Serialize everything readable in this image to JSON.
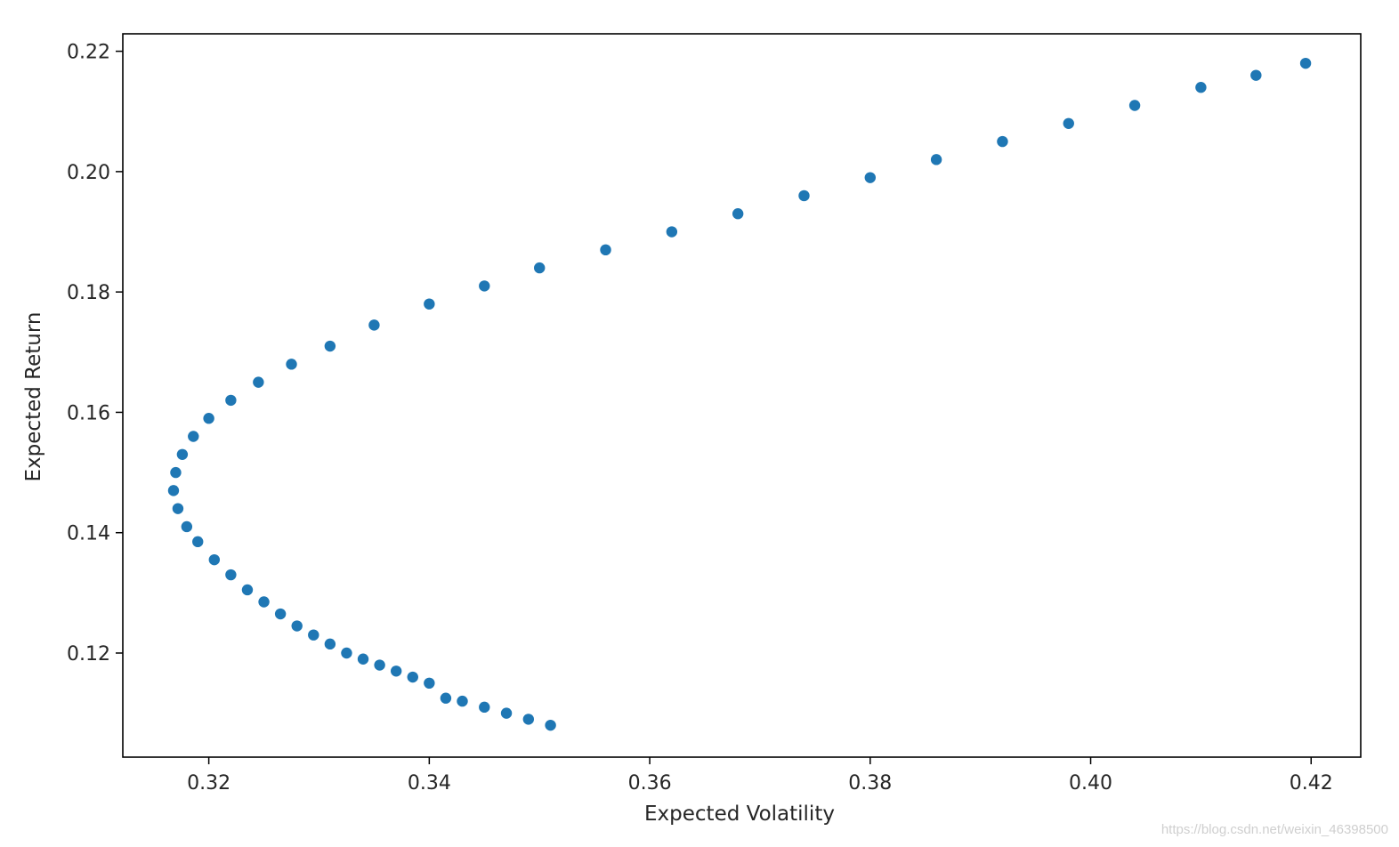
{
  "chart_data": {
    "type": "scatter",
    "title": "",
    "xlabel": "Expected Volatility",
    "ylabel": "Expected Return",
    "xlim": [
      0.3122,
      0.4245
    ],
    "ylim": [
      0.1027,
      0.2229
    ],
    "xticks": [
      "0.32",
      "0.34",
      "0.36",
      "0.38",
      "0.40",
      "0.42"
    ],
    "yticks": [
      "0.12",
      "0.14",
      "0.16",
      "0.18",
      "0.20",
      "0.22"
    ],
    "xtick_values": [
      0.32,
      0.34,
      0.36,
      0.38,
      0.4,
      0.42
    ],
    "ytick_values": [
      0.12,
      0.14,
      0.16,
      0.18,
      0.2,
      0.22
    ],
    "grid": false,
    "marker_color": "#1f77b4",
    "series": [
      {
        "points": [
          [
            0.351,
            0.108
          ],
          [
            0.349,
            0.109
          ],
          [
            0.347,
            0.11
          ],
          [
            0.345,
            0.111
          ],
          [
            0.343,
            0.112
          ],
          [
            0.3415,
            0.1125
          ],
          [
            0.34,
            0.115
          ],
          [
            0.3385,
            0.116
          ],
          [
            0.337,
            0.117
          ],
          [
            0.3355,
            0.118
          ],
          [
            0.334,
            0.119
          ],
          [
            0.3325,
            0.12
          ],
          [
            0.331,
            0.1215
          ],
          [
            0.3295,
            0.123
          ],
          [
            0.328,
            0.1245
          ],
          [
            0.3265,
            0.1265
          ],
          [
            0.325,
            0.1285
          ],
          [
            0.3235,
            0.1305
          ],
          [
            0.322,
            0.133
          ],
          [
            0.3205,
            0.1355
          ],
          [
            0.319,
            0.1385
          ],
          [
            0.318,
            0.141
          ],
          [
            0.3172,
            0.144
          ],
          [
            0.3168,
            0.147
          ],
          [
            0.317,
            0.15
          ],
          [
            0.3176,
            0.153
          ],
          [
            0.3186,
            0.156
          ],
          [
            0.32,
            0.159
          ],
          [
            0.322,
            0.162
          ],
          [
            0.3245,
            0.165
          ],
          [
            0.3275,
            0.168
          ],
          [
            0.331,
            0.171
          ],
          [
            0.335,
            0.1745
          ],
          [
            0.34,
            0.178
          ],
          [
            0.345,
            0.181
          ],
          [
            0.35,
            0.184
          ],
          [
            0.356,
            0.187
          ],
          [
            0.362,
            0.19
          ],
          [
            0.368,
            0.193
          ],
          [
            0.374,
            0.196
          ],
          [
            0.38,
            0.199
          ],
          [
            0.386,
            0.202
          ],
          [
            0.392,
            0.205
          ],
          [
            0.398,
            0.208
          ],
          [
            0.404,
            0.211
          ],
          [
            0.41,
            0.214
          ],
          [
            0.415,
            0.216
          ],
          [
            0.4195,
            0.218
          ]
        ]
      }
    ],
    "watermark": "https://blog.csdn.net/weixin_46398500"
  }
}
